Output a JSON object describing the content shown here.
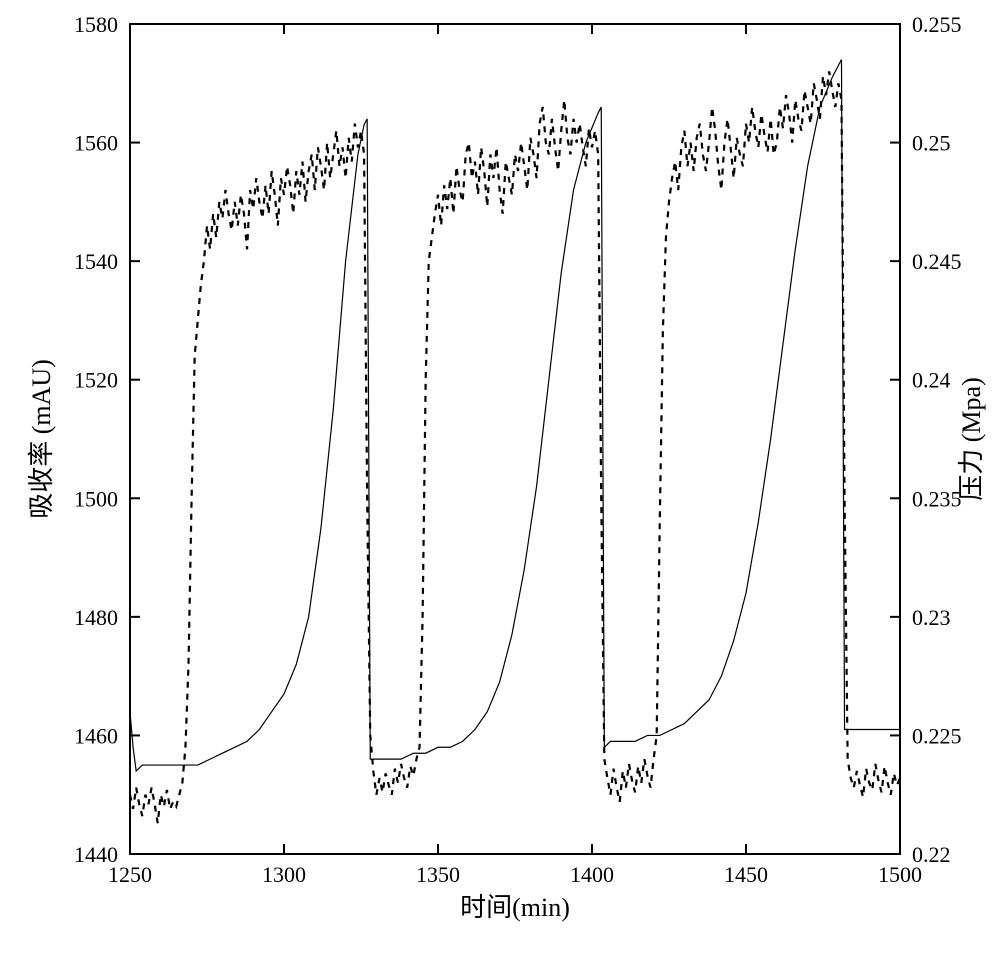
{
  "chart": {
    "type": "line-dual-axis",
    "background_color": "#ffffff",
    "plot_border_color": "#000000",
    "plot_border_width": 2,
    "tick_color": "#000000",
    "tick_width": 2,
    "tick_len_major": 10,
    "tick_label_fontsize": 22,
    "axis_label_fontsize": 26,
    "line_solid": {
      "stroke": "#000000",
      "width": 1.2,
      "dash": "none"
    },
    "line_dashed": {
      "stroke": "#000000",
      "width": 2.2,
      "dash": "6,6"
    },
    "x_axis": {
      "label": "时间(min)",
      "min": 1250,
      "max": 1500,
      "major_step": 50,
      "ticks": [
        1250,
        1300,
        1350,
        1400,
        1450,
        1500
      ]
    },
    "y_left": {
      "label": "吸收率 (mAU)",
      "min": 1440,
      "max": 1580,
      "major_step": 20,
      "ticks": [
        1440,
        1460,
        1480,
        1500,
        1520,
        1540,
        1560,
        1580
      ]
    },
    "y_right": {
      "label": "压力 (Mpa)",
      "min": 0.22,
      "max": 0.255,
      "major_step": 0.005,
      "ticks": [
        0.22,
        0.225,
        0.23,
        0.235,
        0.24,
        0.245,
        0.25,
        0.255
      ]
    },
    "series_solid": {
      "axis": "left",
      "points": [
        [
          1250,
          1464
        ],
        [
          1251,
          1458
        ],
        [
          1252,
          1454
        ],
        [
          1254,
          1455
        ],
        [
          1256,
          1455
        ],
        [
          1258,
          1455
        ],
        [
          1260,
          1455
        ],
        [
          1264,
          1455
        ],
        [
          1268,
          1455
        ],
        [
          1272,
          1455
        ],
        [
          1276,
          1456
        ],
        [
          1280,
          1457
        ],
        [
          1284,
          1458
        ],
        [
          1288,
          1459
        ],
        [
          1292,
          1461
        ],
        [
          1296,
          1464
        ],
        [
          1300,
          1467
        ],
        [
          1304,
          1472
        ],
        [
          1308,
          1480
        ],
        [
          1312,
          1495
        ],
        [
          1316,
          1515
        ],
        [
          1320,
          1540
        ],
        [
          1324,
          1558
        ],
        [
          1326,
          1563
        ],
        [
          1327,
          1564
        ],
        [
          1328,
          1456
        ],
        [
          1330,
          1456
        ],
        [
          1334,
          1456
        ],
        [
          1338,
          1456
        ],
        [
          1342,
          1457
        ],
        [
          1346,
          1457
        ],
        [
          1350,
          1458
        ],
        [
          1354,
          1458
        ],
        [
          1358,
          1459
        ],
        [
          1362,
          1461
        ],
        [
          1366,
          1464
        ],
        [
          1370,
          1469
        ],
        [
          1374,
          1477
        ],
        [
          1378,
          1488
        ],
        [
          1382,
          1502
        ],
        [
          1386,
          1520
        ],
        [
          1390,
          1538
        ],
        [
          1394,
          1552
        ],
        [
          1398,
          1560
        ],
        [
          1402,
          1565
        ],
        [
          1403,
          1566
        ],
        [
          1404,
          1458
        ],
        [
          1406,
          1459
        ],
        [
          1410,
          1459
        ],
        [
          1414,
          1459
        ],
        [
          1418,
          1460
        ],
        [
          1422,
          1460
        ],
        [
          1426,
          1461
        ],
        [
          1430,
          1462
        ],
        [
          1434,
          1464
        ],
        [
          1438,
          1466
        ],
        [
          1442,
          1470
        ],
        [
          1446,
          1476
        ],
        [
          1450,
          1484
        ],
        [
          1454,
          1496
        ],
        [
          1458,
          1510
        ],
        [
          1462,
          1526
        ],
        [
          1466,
          1542
        ],
        [
          1470,
          1556
        ],
        [
          1474,
          1566
        ],
        [
          1478,
          1571
        ],
        [
          1480,
          1573
        ],
        [
          1481,
          1574
        ],
        [
          1482,
          1461
        ],
        [
          1486,
          1461
        ],
        [
          1490,
          1461
        ],
        [
          1494,
          1461
        ],
        [
          1498,
          1461
        ],
        [
          1500,
          1461
        ]
      ]
    },
    "series_dashed": {
      "axis": "right",
      "points": [
        [
          1250,
          0.2225
        ],
        [
          1251,
          0.2219
        ],
        [
          1252,
          0.2228
        ],
        [
          1253,
          0.2221
        ],
        [
          1254,
          0.2216
        ],
        [
          1255,
          0.2225
        ],
        [
          1256,
          0.2221
        ],
        [
          1257,
          0.2228
        ],
        [
          1258,
          0.2221
        ],
        [
          1259,
          0.2213
        ],
        [
          1260,
          0.2225
        ],
        [
          1261,
          0.222
        ],
        [
          1262,
          0.2227
        ],
        [
          1263,
          0.2219
        ],
        [
          1264,
          0.2222
        ],
        [
          1265,
          0.222
        ],
        [
          1266,
          0.2225
        ],
        [
          1267,
          0.223
        ],
        [
          1268,
          0.2245
        ],
        [
          1269,
          0.228
        ],
        [
          1270,
          0.235
        ],
        [
          1271,
          0.241
        ],
        [
          1272,
          0.2425
        ],
        [
          1273,
          0.244
        ],
        [
          1274,
          0.245
        ],
        [
          1275,
          0.2465
        ],
        [
          1276,
          0.2455
        ],
        [
          1277,
          0.247
        ],
        [
          1278,
          0.246
        ],
        [
          1279,
          0.2475
        ],
        [
          1280,
          0.2468
        ],
        [
          1281,
          0.248
        ],
        [
          1282,
          0.247
        ],
        [
          1283,
          0.2463
        ],
        [
          1284,
          0.2475
        ],
        [
          1285,
          0.2465
        ],
        [
          1286,
          0.2478
        ],
        [
          1287,
          0.247
        ],
        [
          1288,
          0.2455
        ],
        [
          1289,
          0.248
        ],
        [
          1290,
          0.2472
        ],
        [
          1291,
          0.2485
        ],
        [
          1292,
          0.2475
        ],
        [
          1293,
          0.2468
        ],
        [
          1294,
          0.2482
        ],
        [
          1295,
          0.247
        ],
        [
          1296,
          0.2488
        ],
        [
          1297,
          0.2478
        ],
        [
          1298,
          0.2465
        ],
        [
          1299,
          0.2485
        ],
        [
          1300,
          0.2478
        ],
        [
          1301,
          0.249
        ],
        [
          1302,
          0.2482
        ],
        [
          1303,
          0.247
        ],
        [
          1304,
          0.2488
        ],
        [
          1305,
          0.2478
        ],
        [
          1306,
          0.2492
        ],
        [
          1307,
          0.2475
        ],
        [
          1308,
          0.2488
        ],
        [
          1309,
          0.2495
        ],
        [
          1310,
          0.248
        ],
        [
          1311,
          0.2498
        ],
        [
          1312,
          0.249
        ],
        [
          1313,
          0.248
        ],
        [
          1314,
          0.25
        ],
        [
          1315,
          0.2485
        ],
        [
          1316,
          0.2495
        ],
        [
          1317,
          0.2505
        ],
        [
          1318,
          0.249
        ],
        [
          1319,
          0.2498
        ],
        [
          1320,
          0.2485
        ],
        [
          1321,
          0.2502
        ],
        [
          1322,
          0.2492
        ],
        [
          1323,
          0.2508
        ],
        [
          1324,
          0.2498
        ],
        [
          1325,
          0.2505
        ],
        [
          1326,
          0.2495
        ],
        [
          1327,
          0.235
        ],
        [
          1328,
          0.225
        ],
        [
          1329,
          0.2235
        ],
        [
          1330,
          0.2225
        ],
        [
          1331,
          0.2232
        ],
        [
          1332,
          0.2226
        ],
        [
          1333,
          0.2234
        ],
        [
          1334,
          0.2229
        ],
        [
          1335,
          0.2225
        ],
        [
          1336,
          0.2236
        ],
        [
          1337,
          0.223
        ],
        [
          1338,
          0.2238
        ],
        [
          1339,
          0.2232
        ],
        [
          1340,
          0.2228
        ],
        [
          1341,
          0.2237
        ],
        [
          1342,
          0.2233
        ],
        [
          1343,
          0.224
        ],
        [
          1344,
          0.2245
        ],
        [
          1345,
          0.23
        ],
        [
          1346,
          0.24
        ],
        [
          1347,
          0.245
        ],
        [
          1348,
          0.246
        ],
        [
          1349,
          0.247
        ],
        [
          1350,
          0.2478
        ],
        [
          1351,
          0.2465
        ],
        [
          1352,
          0.2482
        ],
        [
          1353,
          0.2472
        ],
        [
          1354,
          0.2485
        ],
        [
          1355,
          0.247
        ],
        [
          1356,
          0.249
        ],
        [
          1357,
          0.248
        ],
        [
          1358,
          0.2475
        ],
        [
          1359,
          0.2495
        ],
        [
          1360,
          0.25
        ],
        [
          1361,
          0.2485
        ],
        [
          1362,
          0.2492
        ],
        [
          1363,
          0.2478
        ],
        [
          1364,
          0.2498
        ],
        [
          1365,
          0.2488
        ],
        [
          1366,
          0.2473
        ],
        [
          1367,
          0.2495
        ],
        [
          1368,
          0.2485
        ],
        [
          1369,
          0.2498
        ],
        [
          1370,
          0.248
        ],
        [
          1371,
          0.247
        ],
        [
          1372,
          0.2492
        ],
        [
          1373,
          0.2485
        ],
        [
          1374,
          0.2478
        ],
        [
          1375,
          0.2495
        ],
        [
          1376,
          0.2488
        ],
        [
          1377,
          0.25
        ],
        [
          1378,
          0.249
        ],
        [
          1379,
          0.248
        ],
        [
          1380,
          0.2502
        ],
        [
          1381,
          0.2495
        ],
        [
          1382,
          0.2485
        ],
        [
          1383,
          0.2508
        ],
        [
          1384,
          0.2515
        ],
        [
          1385,
          0.25
        ],
        [
          1386,
          0.2495
        ],
        [
          1387,
          0.251
        ],
        [
          1388,
          0.2498
        ],
        [
          1389,
          0.2488
        ],
        [
          1390,
          0.2505
        ],
        [
          1391,
          0.2518
        ],
        [
          1392,
          0.2502
        ],
        [
          1393,
          0.2495
        ],
        [
          1394,
          0.251
        ],
        [
          1395,
          0.25
        ],
        [
          1396,
          0.2508
        ],
        [
          1397,
          0.2498
        ],
        [
          1398,
          0.249
        ],
        [
          1399,
          0.2506
        ],
        [
          1400,
          0.2498
        ],
        [
          1401,
          0.2505
        ],
        [
          1402,
          0.2495
        ],
        [
          1403,
          0.235
        ],
        [
          1404,
          0.224
        ],
        [
          1405,
          0.2232
        ],
        [
          1406,
          0.2225
        ],
        [
          1407,
          0.2236
        ],
        [
          1408,
          0.2228
        ],
        [
          1409,
          0.2222
        ],
        [
          1410,
          0.2235
        ],
        [
          1411,
          0.2228
        ],
        [
          1412,
          0.2238
        ],
        [
          1413,
          0.2231
        ],
        [
          1414,
          0.2226
        ],
        [
          1415,
          0.2237
        ],
        [
          1416,
          0.223
        ],
        [
          1417,
          0.224
        ],
        [
          1418,
          0.2233
        ],
        [
          1419,
          0.2228
        ],
        [
          1420,
          0.224
        ],
        [
          1421,
          0.225
        ],
        [
          1422,
          0.234
        ],
        [
          1423,
          0.242
        ],
        [
          1424,
          0.246
        ],
        [
          1425,
          0.2475
        ],
        [
          1426,
          0.2485
        ],
        [
          1427,
          0.2492
        ],
        [
          1428,
          0.248
        ],
        [
          1429,
          0.2498
        ],
        [
          1430,
          0.2505
        ],
        [
          1431,
          0.249
        ],
        [
          1432,
          0.25
        ],
        [
          1433,
          0.2488
        ],
        [
          1434,
          0.2502
        ],
        [
          1435,
          0.2508
        ],
        [
          1436,
          0.2495
        ],
        [
          1437,
          0.2488
        ],
        [
          1438,
          0.25
        ],
        [
          1439,
          0.2515
        ],
        [
          1440,
          0.2505
        ],
        [
          1441,
          0.249
        ],
        [
          1442,
          0.248
        ],
        [
          1443,
          0.25
        ],
        [
          1444,
          0.251
        ],
        [
          1445,
          0.2498
        ],
        [
          1446,
          0.2485
        ],
        [
          1447,
          0.2502
        ],
        [
          1448,
          0.2495
        ],
        [
          1449,
          0.249
        ],
        [
          1450,
          0.2508
        ],
        [
          1451,
          0.25
        ],
        [
          1452,
          0.2515
        ],
        [
          1453,
          0.2505
        ],
        [
          1454,
          0.2498
        ],
        [
          1455,
          0.2512
        ],
        [
          1456,
          0.2503
        ],
        [
          1457,
          0.2496
        ],
        [
          1458,
          0.251
        ],
        [
          1459,
          0.2495
        ],
        [
          1460,
          0.25
        ],
        [
          1461,
          0.2515
        ],
        [
          1462,
          0.2506
        ],
        [
          1463,
          0.252
        ],
        [
          1464,
          0.2512
        ],
        [
          1465,
          0.25
        ],
        [
          1466,
          0.2518
        ],
        [
          1467,
          0.251
        ],
        [
          1468,
          0.2505
        ],
        [
          1469,
          0.2522
        ],
        [
          1470,
          0.2515
        ],
        [
          1471,
          0.2508
        ],
        [
          1472,
          0.2525
        ],
        [
          1473,
          0.2518
        ],
        [
          1474,
          0.251
        ],
        [
          1475,
          0.2528
        ],
        [
          1476,
          0.252
        ],
        [
          1477,
          0.253
        ],
        [
          1478,
          0.2522
        ],
        [
          1479,
          0.2515
        ],
        [
          1480,
          0.2525
        ],
        [
          1481,
          0.2518
        ],
        [
          1482,
          0.235
        ],
        [
          1483,
          0.224
        ],
        [
          1484,
          0.2232
        ],
        [
          1485,
          0.2228
        ],
        [
          1486,
          0.2235
        ],
        [
          1487,
          0.2229
        ],
        [
          1488,
          0.2224
        ],
        [
          1489,
          0.2236
        ],
        [
          1490,
          0.223
        ],
        [
          1491,
          0.2227
        ],
        [
          1492,
          0.2238
        ],
        [
          1493,
          0.2231
        ],
        [
          1494,
          0.2226
        ],
        [
          1495,
          0.2237
        ],
        [
          1496,
          0.223
        ],
        [
          1497,
          0.2225
        ],
        [
          1498,
          0.2234
        ],
        [
          1499,
          0.2229
        ],
        [
          1500,
          0.2232
        ]
      ]
    }
  }
}
